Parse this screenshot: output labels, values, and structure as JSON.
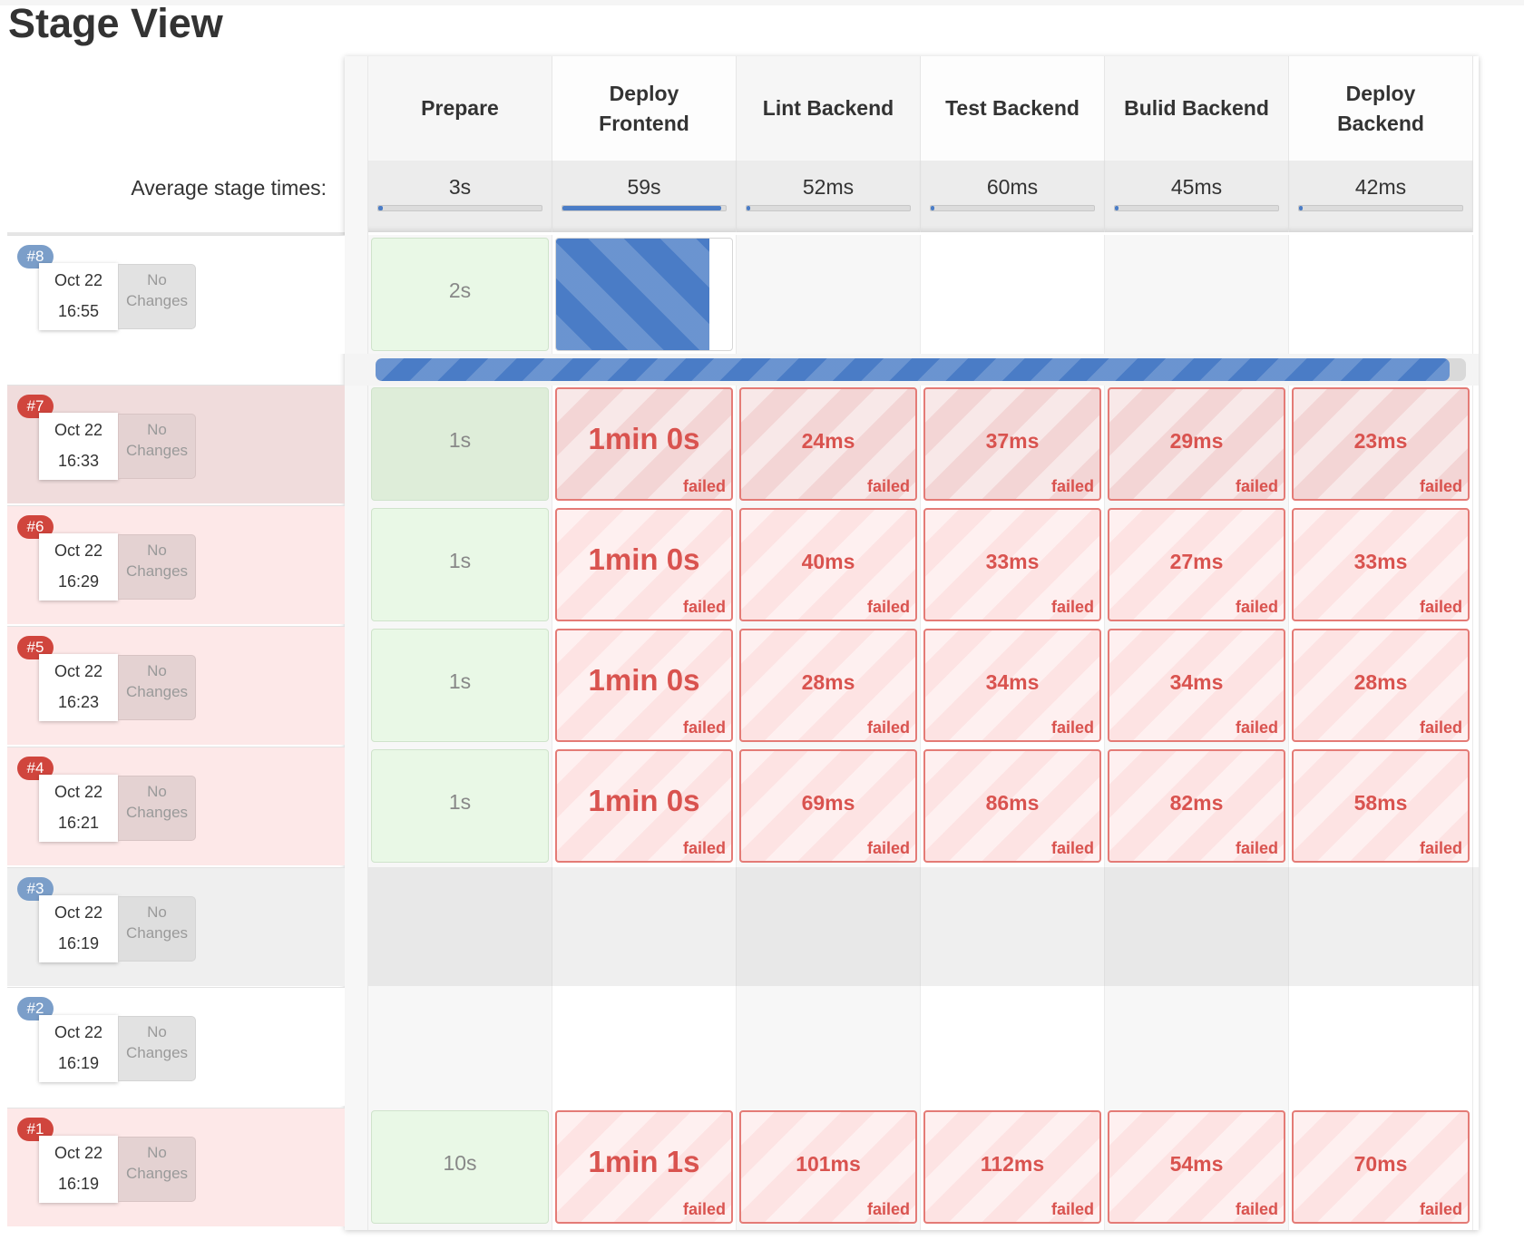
{
  "page": {
    "title": "Stage View"
  },
  "average_label": "Average stage times:",
  "stages": [
    {
      "name": "Prepare",
      "avg": "3s",
      "avg_fraction": 0.03
    },
    {
      "name": "Deploy Frontend",
      "avg": "59s",
      "avg_fraction": 0.97
    },
    {
      "name": "Lint Backend",
      "avg": "52ms",
      "avg_fraction": 0.01
    },
    {
      "name": "Test Backend",
      "avg": "60ms",
      "avg_fraction": 0.01
    },
    {
      "name": "Bulid Backend",
      "avg": "45ms",
      "avg_fraction": 0.01
    },
    {
      "name": "Deploy Backend",
      "avg": "42ms",
      "avg_fraction": 0.005
    }
  ],
  "failed_label": "failed",
  "changes_label": [
    "No",
    "Changes"
  ],
  "colors": {
    "accent_blue": "#4a7cc6",
    "failed_red": "#d9534f",
    "success_green": "#e9f8e6",
    "badge_blue": "#7b9ec9",
    "badge_red": "#d0453d"
  },
  "in_progress": {
    "build": "#8",
    "stage_fraction": 0.87,
    "overall_fraction": 0.985
  },
  "builds": [
    {
      "id": "#8",
      "date": "Oct 22",
      "time": "16:55",
      "status": "running",
      "cells": [
        "2s"
      ]
    },
    {
      "id": "#7",
      "date": "Oct 22",
      "time": "16:33",
      "status": "failed",
      "cells": [
        "1s",
        "1min 0s",
        "24ms",
        "37ms",
        "29ms",
        "23ms"
      ]
    },
    {
      "id": "#6",
      "date": "Oct 22",
      "time": "16:29",
      "status": "failed",
      "cells": [
        "1s",
        "1min 0s",
        "40ms",
        "33ms",
        "27ms",
        "33ms"
      ]
    },
    {
      "id": "#5",
      "date": "Oct 22",
      "time": "16:23",
      "status": "failed",
      "cells": [
        "1s",
        "1min 0s",
        "28ms",
        "34ms",
        "34ms",
        "28ms"
      ]
    },
    {
      "id": "#4",
      "date": "Oct 22",
      "time": "16:21",
      "status": "failed",
      "cells": [
        "1s",
        "1min 0s",
        "69ms",
        "86ms",
        "82ms",
        "58ms"
      ]
    },
    {
      "id": "#3",
      "date": "Oct 22",
      "time": "16:19",
      "status": "aborted",
      "cells": []
    },
    {
      "id": "#2",
      "date": "Oct 22",
      "time": "16:19",
      "status": "pending",
      "cells": []
    },
    {
      "id": "#1",
      "date": "Oct 22",
      "time": "16:19",
      "status": "failed",
      "cells": [
        "10s",
        "1min 1s",
        "101ms",
        "112ms",
        "54ms",
        "70ms"
      ]
    }
  ]
}
